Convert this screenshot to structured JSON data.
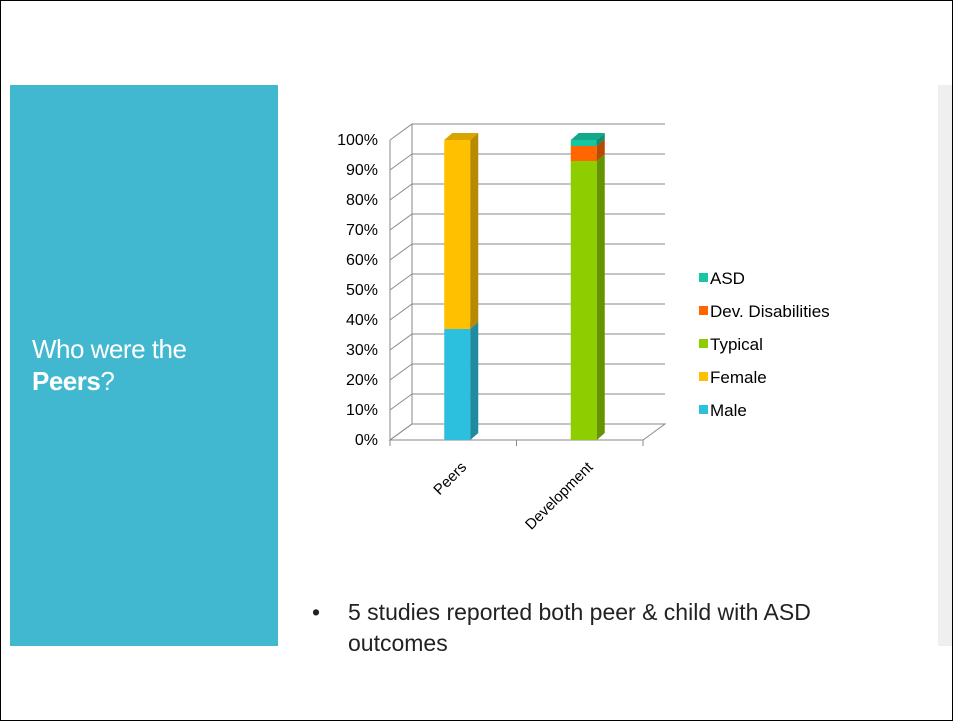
{
  "slide": {
    "title_plain": "Who were the",
    "title_bold": "Peers",
    "title_end": "?",
    "bullet_symbol": "•",
    "bullet_text": "5 studies reported both peer & child with ASD outcomes"
  },
  "colors": {
    "title_panel": "#41b7d0",
    "male": "#2dbfde",
    "female": "#ffc000",
    "typical": "#8ecd00",
    "dev_disabilities": "#ff6600",
    "asd": "#16c6a2"
  },
  "chart_data": {
    "type": "bar",
    "stacked": true,
    "three_d": true,
    "categories": [
      "Peers",
      "Development"
    ],
    "series": [
      {
        "name": "Male",
        "color": "#2dbfde",
        "values": [
          37,
          0
        ]
      },
      {
        "name": "Female",
        "color": "#ffc000",
        "values": [
          63,
          0
        ]
      },
      {
        "name": "Typical",
        "color": "#8ecd00",
        "values": [
          0,
          93
        ]
      },
      {
        "name": "Dev. Disabilities",
        "color": "#ff6600",
        "values": [
          0,
          5
        ]
      },
      {
        "name": "ASD",
        "color": "#16c6a2",
        "values": [
          0,
          2
        ]
      }
    ],
    "ylim": [
      0,
      100
    ],
    "y_ticks": [
      "0%",
      "10%",
      "20%",
      "30%",
      "40%",
      "50%",
      "60%",
      "70%",
      "80%",
      "90%",
      "100%"
    ],
    "grid": true,
    "legend_position": "right",
    "legend_order": [
      "ASD",
      "Dev. Disabilities",
      "Typical",
      "Female",
      "Male"
    ]
  }
}
